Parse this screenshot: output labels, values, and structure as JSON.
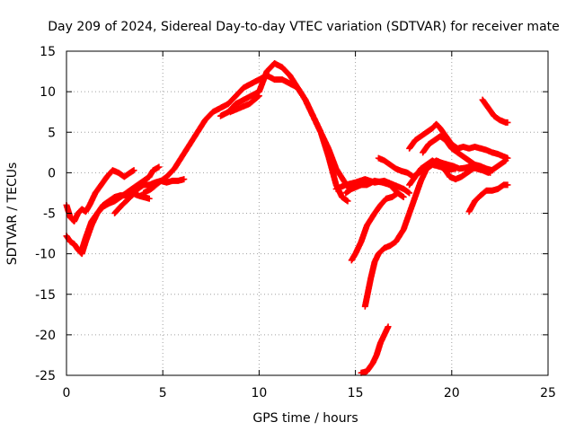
{
  "chart_data": {
    "type": "scatter",
    "title": "Day 209 of 2024, Sidereal Day-to-day VTEC variation (SDTVAR) for receiver mate",
    "xlabel": "GPS time / hours",
    "ylabel": "SDTVAR / TECUs",
    "xlim": [
      0,
      25
    ],
    "ylim": [
      -25,
      15
    ],
    "xticks": [
      0,
      5,
      10,
      15,
      20,
      25
    ],
    "yticks": [
      -25,
      -20,
      -15,
      -10,
      -5,
      0,
      5,
      10,
      15
    ],
    "grid": true,
    "marker": "+",
    "colors": {
      "series": "#ff0000",
      "grid": "#a0a0a0",
      "frame": "#000000"
    },
    "series": [
      {
        "x": [
          0.0,
          0.2,
          0.4,
          0.6,
          0.8,
          1.0,
          1.2,
          1.5,
          1.8,
          2.1,
          2.4,
          2.7,
          3.0,
          3.3,
          3.5
        ],
        "y": [
          -4.0,
          -5.5,
          -6.0,
          -5.0,
          -4.5,
          -4.8,
          -4.0,
          -2.5,
          -1.5,
          -0.5,
          0.3,
          0.0,
          -0.5,
          0.0,
          0.3
        ]
      },
      {
        "x": [
          0.0,
          0.2,
          0.4,
          0.6,
          0.8,
          1.0,
          1.3,
          1.6,
          1.9,
          2.2,
          2.5,
          2.8,
          3.1,
          3.4,
          3.7,
          4.0,
          4.3,
          4.5,
          4.8
        ],
        "y": [
          -7.8,
          -8.5,
          -8.8,
          -9.5,
          -10.0,
          -8.5,
          -6.5,
          -5.0,
          -4.2,
          -3.8,
          -3.5,
          -3.0,
          -2.5,
          -2.0,
          -1.5,
          -1.0,
          -0.5,
          0.3,
          0.7
        ]
      },
      {
        "x": [
          0.8,
          1.0,
          1.3,
          1.6,
          1.9,
          2.2,
          2.5,
          2.8,
          3.1,
          3.4,
          3.7,
          4.0,
          4.3
        ],
        "y": [
          -9.5,
          -8.0,
          -6.0,
          -5.0,
          -4.0,
          -3.5,
          -3.0,
          -2.8,
          -2.8,
          -2.5,
          -2.8,
          -3.0,
          -3.2
        ]
      },
      {
        "x": [
          2.5,
          2.8,
          3.1,
          3.4,
          3.7,
          4.0,
          4.3,
          4.6,
          4.9,
          5.2,
          5.5,
          5.8,
          6.1
        ],
        "y": [
          -5.0,
          -4.2,
          -3.5,
          -2.8,
          -2.0,
          -1.5,
          -1.5,
          -1.2,
          -1.0,
          -1.2,
          -1.0,
          -1.0,
          -0.8
        ]
      },
      {
        "x": [
          4.0,
          4.4,
          4.8,
          5.2,
          5.6,
          6.0,
          6.4,
          6.8,
          7.2,
          7.6,
          8.0,
          8.4,
          8.8,
          9.2,
          9.6,
          10.0,
          10.4,
          10.8,
          11.2,
          11.6,
          12.0,
          12.4,
          12.8,
          13.2,
          13.6,
          14.0,
          14.4,
          14.7
        ],
        "y": [
          -2.5,
          -2.0,
          -1.2,
          -0.5,
          0.5,
          2.0,
          3.5,
          5.0,
          6.5,
          7.5,
          8.0,
          8.5,
          9.5,
          10.5,
          11.0,
          11.5,
          12.0,
          11.5,
          11.5,
          11.0,
          10.5,
          9.0,
          7.0,
          5.0,
          3.0,
          0.5,
          -1.0,
          -2.0
        ]
      },
      {
        "x": [
          8.0,
          8.4,
          8.8,
          9.2,
          9.6,
          10.0,
          10.4,
          10.8,
          11.2,
          11.6,
          12.0,
          12.4,
          12.8,
          13.2,
          13.6,
          14.0,
          14.3,
          14.6
        ],
        "y": [
          7.0,
          7.5,
          8.5,
          9.0,
          9.5,
          10.0,
          12.5,
          13.5,
          13.0,
          12.0,
          10.5,
          9.0,
          7.0,
          5.0,
          2.0,
          -1.5,
          -3.0,
          -3.5
        ]
      },
      {
        "x": [
          8.5,
          9.0,
          9.5,
          10.0
        ],
        "y": [
          7.5,
          8.0,
          8.5,
          9.5
        ]
      },
      {
        "x": [
          14.0,
          14.5,
          15.0,
          15.5,
          16.0,
          16.5,
          17.0,
          17.5,
          17.8
        ],
        "y": [
          -2.0,
          -1.5,
          -1.2,
          -0.8,
          -1.2,
          -1.0,
          -1.5,
          -2.0,
          -2.5
        ]
      },
      {
        "x": [
          14.5,
          14.8,
          15.0,
          15.3,
          15.6,
          16.0,
          16.4,
          16.8,
          17.2,
          17.5
        ],
        "y": [
          -2.5,
          -2.0,
          -1.8,
          -1.5,
          -1.5,
          -1.0,
          -1.2,
          -1.5,
          -2.5,
          -3.0
        ]
      },
      {
        "x": [
          14.8,
          15.0,
          15.3,
          15.6,
          16.0,
          16.3,
          16.6,
          16.9,
          17.2
        ],
        "y": [
          -10.8,
          -10.0,
          -8.5,
          -6.5,
          -5.0,
          -4.0,
          -3.2,
          -3.0,
          -2.5
        ]
      },
      {
        "x": [
          15.5,
          15.8,
          16.0,
          16.2,
          16.5,
          16.8,
          17.1,
          17.5,
          17.8,
          18.1,
          18.4,
          18.7,
          19.0,
          19.3,
          19.6,
          19.9,
          20.2
        ],
        "y": [
          -16.5,
          -13.0,
          -11.0,
          -10.0,
          -9.3,
          -9.0,
          -8.5,
          -7.0,
          -5.0,
          -3.0,
          -1.0,
          0.5,
          1.0,
          0.8,
          0.6,
          0.4,
          0.5
        ]
      },
      {
        "x": [
          15.3,
          15.6,
          15.9,
          16.1,
          16.3,
          16.5,
          16.7
        ],
        "y": [
          -24.7,
          -24.5,
          -23.5,
          -22.5,
          -21.0,
          -20.0,
          -19.0
        ]
      },
      {
        "x": [
          16.2,
          16.5,
          16.8,
          17.1,
          17.4,
          17.7,
          18.0,
          18.3,
          18.6,
          18.9,
          19.2,
          19.5,
          19.8,
          20.1,
          20.4,
          20.7,
          21.0,
          21.3,
          21.6,
          21.9,
          22.2,
          22.5,
          22.8
        ],
        "y": [
          1.8,
          1.5,
          1.0,
          0.5,
          0.2,
          0.0,
          -0.5,
          0.0,
          0.5,
          1.0,
          1.5,
          1.2,
          1.0,
          0.8,
          0.5,
          0.6,
          0.8,
          0.5,
          0.3,
          0.0,
          0.5,
          1.0,
          1.5
        ]
      },
      {
        "x": [
          17.8,
          18.1,
          18.4,
          18.7,
          19.0,
          19.3,
          19.6,
          19.9,
          20.2,
          20.5,
          20.8,
          21.1,
          21.4,
          21.7,
          22.0
        ],
        "y": [
          -1.5,
          -0.5,
          0.5,
          1.0,
          1.5,
          1.0,
          0.5,
          -0.5,
          -0.8,
          -0.5,
          0.0,
          0.5,
          0.8,
          0.5,
          0.0
        ]
      },
      {
        "x": [
          17.8,
          18.1,
          18.4,
          18.7,
          19.0,
          19.2,
          19.4,
          19.7,
          20.0,
          20.3,
          20.6,
          20.9,
          21.2,
          21.5,
          21.8,
          22.1,
          22.4,
          22.7,
          22.9
        ],
        "y": [
          3.0,
          4.0,
          4.5,
          5.0,
          5.5,
          6.0,
          5.5,
          4.5,
          3.5,
          3.0,
          3.2,
          3.0,
          3.2,
          3.0,
          2.8,
          2.5,
          2.3,
          2.0,
          1.8
        ]
      },
      {
        "x": [
          18.5,
          18.8,
          19.1,
          19.4,
          19.7,
          20.0,
          20.3,
          20.6,
          20.9,
          21.2,
          21.5,
          21.8,
          22.1
        ],
        "y": [
          2.5,
          3.5,
          4.0,
          4.5,
          4.0,
          3.0,
          2.5,
          2.0,
          1.5,
          1.0,
          0.8,
          0.5,
          0.3
        ]
      },
      {
        "x": [
          20.9,
          21.2,
          21.5,
          21.8,
          22.1,
          22.4,
          22.7,
          22.9
        ],
        "y": [
          -4.8,
          -3.5,
          -2.8,
          -2.2,
          -2.2,
          -2.0,
          -1.5,
          -1.5
        ]
      },
      {
        "x": [
          21.6,
          21.9,
          22.2,
          22.5,
          22.8,
          22.9
        ],
        "y": [
          9.0,
          8.0,
          7.0,
          6.5,
          6.2,
          6.2
        ]
      }
    ]
  }
}
